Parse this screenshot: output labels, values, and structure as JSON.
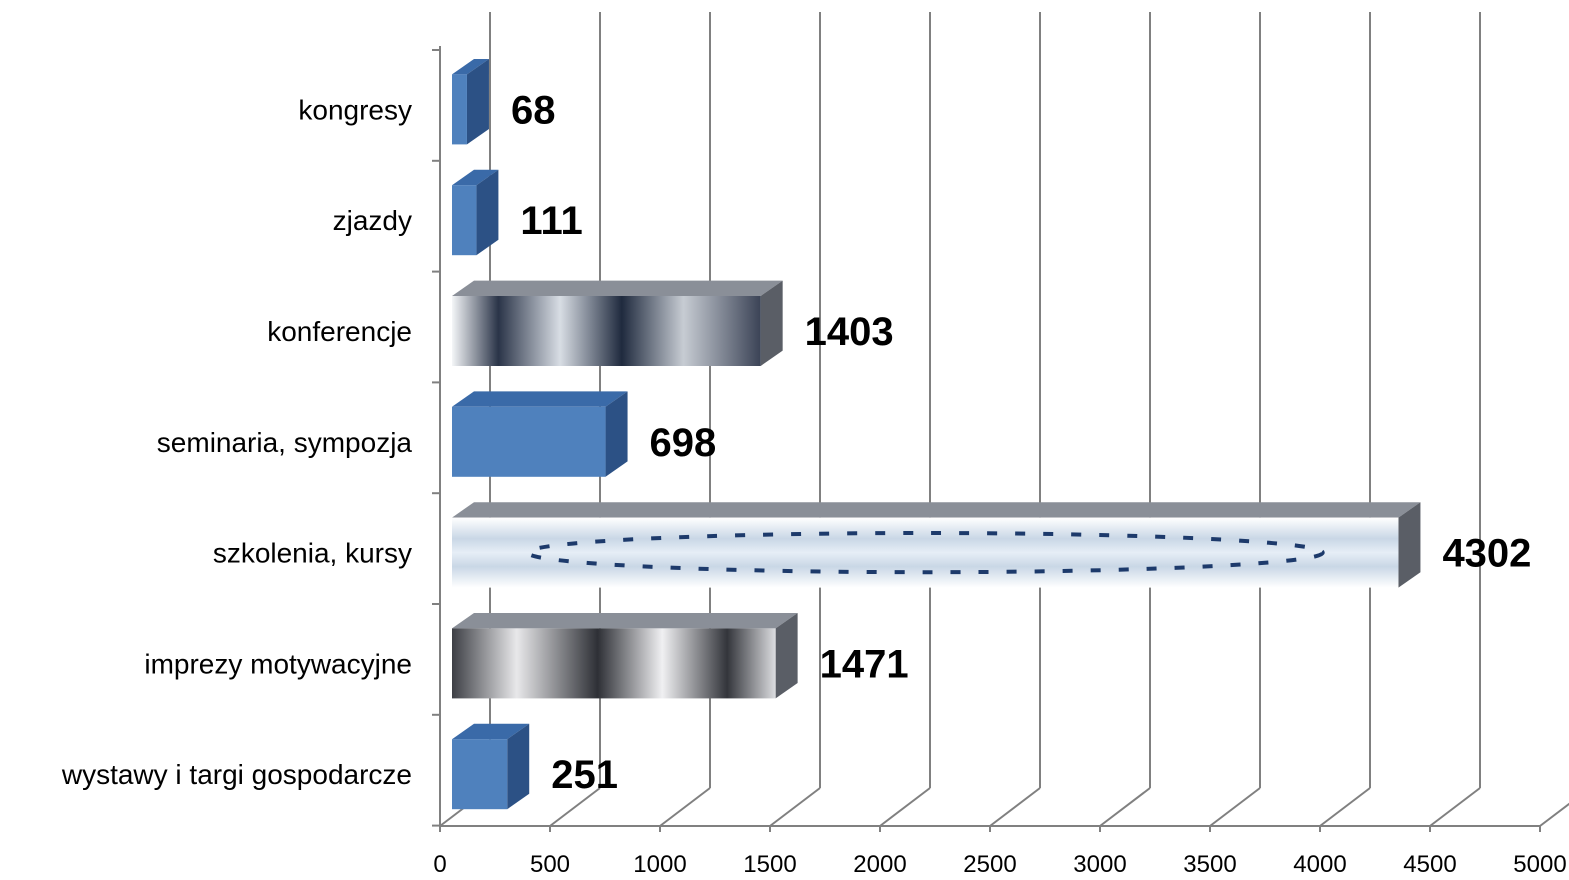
{
  "chart_data": {
    "type": "bar",
    "orientation": "horizontal",
    "three_d": true,
    "categories": [
      "kongresy",
      "zjazdy",
      "konferencje",
      "seminaria, sympozja",
      "szkolenia, kursy",
      "imprezy motywacyjne",
      "wystawy i targi gospodarcze"
    ],
    "values": [
      68,
      111,
      1403,
      698,
      4302,
      1471,
      251
    ],
    "data_labels": [
      "68",
      "111",
      "1403",
      "698",
      "4302",
      "1471",
      "251"
    ],
    "bar_fill": [
      "plain",
      "plain",
      "photo",
      "plain",
      "photo",
      "photo",
      "plain"
    ],
    "xlim": [
      0,
      5000
    ],
    "x_ticks": [
      "0",
      "500",
      "1000",
      "1500",
      "2000",
      "2500",
      "3000",
      "3500",
      "4000",
      "4500",
      "5000"
    ],
    "grid": true,
    "legend": "none",
    "title": "",
    "xlabel": "",
    "ylabel": "",
    "colors": {
      "bar_front": "#4f81bd",
      "bar_top": "#3a6aa8",
      "bar_side": "#2c5185",
      "grid": "#808080",
      "axis": "#808080"
    }
  }
}
